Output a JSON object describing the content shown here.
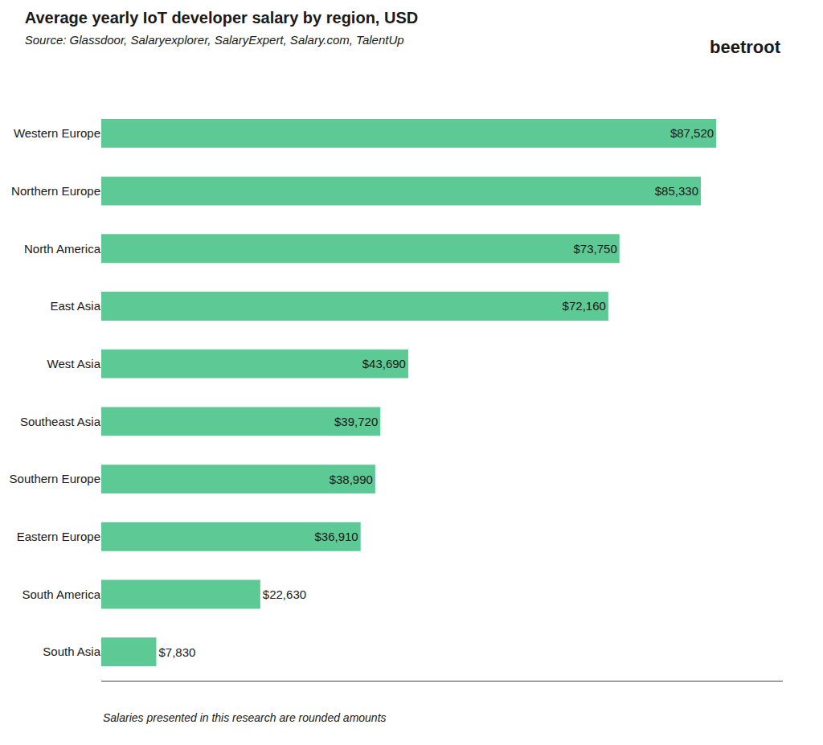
{
  "chart_data": {
    "type": "bar",
    "orientation": "horizontal",
    "title": "Average yearly IoT developer salary by region, USD",
    "subtitle": "Source: Glassdoor, Salaryexplorer, SalaryExpert, Salary.com, TalentUp",
    "annotations": [
      "Salaries presented in this research are rounded amounts",
      "beetroot"
    ],
    "categories": [
      "Western Europe",
      "Northern Europe",
      "North America",
      "East Asia",
      "West Asia",
      "Southeast Asia",
      "Southern Europe",
      "Eastern Europe",
      "South America",
      "South Asia"
    ],
    "values": [
      87520,
      85330,
      73750,
      72160,
      43690,
      39720,
      38990,
      36910,
      22630,
      7830
    ],
    "value_labels": [
      "$87,520",
      "$85,330",
      "$73,750",
      "$72,160",
      "$43,690",
      "$39,720",
      "$38,990",
      "$36,910",
      "$22,630",
      "$7,830"
    ],
    "data_labels": true,
    "color": "#5DC994",
    "xlim": [
      0,
      97000
    ],
    "grid": false,
    "tick_labels": "y"
  }
}
